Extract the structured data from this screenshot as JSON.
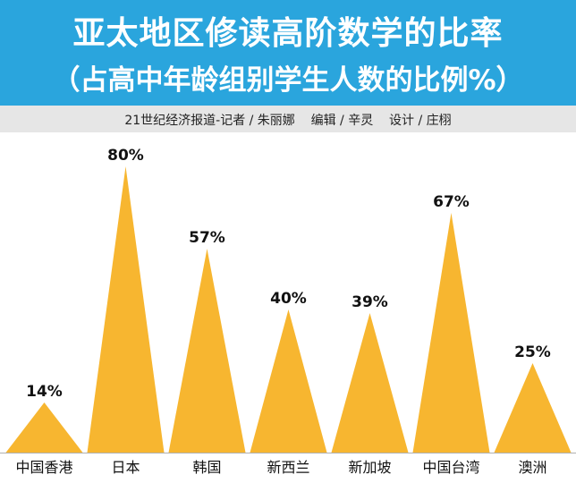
{
  "header": {
    "title": "亚太地区修读高阶数学的比率",
    "subtitle": "（占高中年龄组别学生人数的比例%）"
  },
  "credit": "21世纪经济报道-记者 / 朱丽娜    编辑 / 辛灵    设计 / 庄栩",
  "colors": {
    "header_bg": "#2aa5dd",
    "bar": "#f7b630",
    "baseline": "#b0b0b0"
  },
  "chart_data": {
    "type": "bar",
    "mark_shape": "triangle",
    "categories": [
      "中国香港",
      "日本",
      "韩国",
      "新西兰",
      "新加坡",
      "中国台湾",
      "澳洲"
    ],
    "values": [
      14,
      80,
      57,
      40,
      39,
      67,
      25
    ],
    "value_labels": [
      "14%",
      "80%",
      "57%",
      "40%",
      "39%",
      "67%",
      "25%"
    ],
    "ylim": [
      0,
      80
    ],
    "grid": false,
    "legend": "none"
  }
}
